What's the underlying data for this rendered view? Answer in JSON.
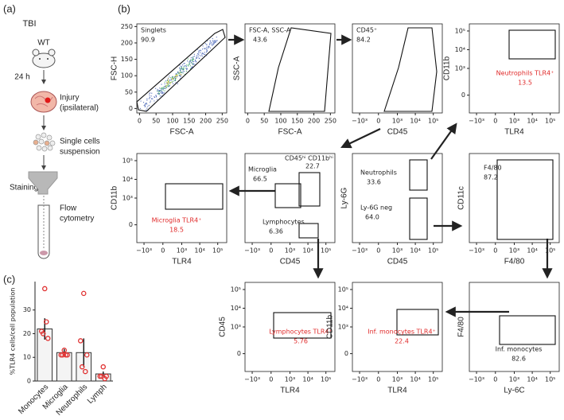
{
  "panel_a": {
    "label": "(a)",
    "title": "TBI",
    "strain": "WT",
    "time": "24 h",
    "injury": [
      "Injury",
      "(ipsilateral)"
    ],
    "cells": [
      "Single cells",
      "suspension"
    ],
    "staining": "Staining",
    "flow": [
      "Flow",
      "cytometry"
    ]
  },
  "panel_b": {
    "label": "(b)",
    "plots": [
      {
        "x_label": "FSC-A",
        "y_label": "FSC-H",
        "x_ticks": [
          0,
          50,
          100,
          150,
          200,
          250
        ],
        "y_ticks": [
          250,
          200,
          150,
          100,
          50,
          0
        ],
        "texts": [
          {
            "text": "Singlets"
          },
          {
            "text": "90.9"
          }
        ]
      },
      {
        "x_label": "FSC-A",
        "y_label": "SSC-A",
        "x_ticks": [
          0,
          50,
          100,
          150,
          200,
          250
        ],
        "y_ticks": [],
        "texts": [
          {
            "text": "FSC-A, SSC-A"
          },
          {
            "text": "43.6"
          }
        ]
      },
      {
        "x_label": "CD45",
        "y_label": "",
        "x_ticks": [
          "−10³",
          0,
          "10³",
          "10⁴",
          "10⁵"
        ],
        "y_ticks": [],
        "texts": [
          {
            "text": "CD45⁺"
          },
          {
            "text": "84.2"
          }
        ]
      },
      {
        "x_label": "TLR4",
        "y_label": "CD11b",
        "x_ticks": [
          "−10³",
          0,
          "10³",
          "10⁴",
          "10⁵"
        ],
        "y_ticks": [
          "10⁵",
          "10⁴",
          "10³",
          0
        ],
        "texts": [
          {
            "text": "Neutrophils TLR4⁺",
            "color": "#e02a2a"
          },
          {
            "text": "13.5",
            "color": "#e02a2a"
          }
        ]
      },
      {
        "x_label": "TLR4",
        "y_label": "CD11b",
        "x_ticks": [
          "−10³",
          0,
          "10³",
          "10⁴",
          "10⁵"
        ],
        "y_ticks": [
          "10⁵",
          "10⁴",
          "10³",
          0
        ],
        "texts": [
          {
            "text": "Microglia TLR4⁺",
            "color": "#e02a2a"
          },
          {
            "text": "18.5",
            "color": "#e02a2a"
          }
        ]
      },
      {
        "x_label": "CD45",
        "y_label": "",
        "x_ticks": [
          "−10³",
          0,
          "10³",
          "10⁴",
          "10⁵"
        ],
        "y_ticks": [],
        "texts": [
          {
            "text": "Microglia"
          },
          {
            "text": "66.5"
          },
          {
            "text": "CD45ʰⁱ CD11bʰⁱ"
          },
          {
            "text": "22.7"
          },
          {
            "text": "Lymphocytes"
          },
          {
            "text": "6.36"
          }
        ]
      },
      {
        "x_label": "CD45",
        "y_label": "Ly-6G",
        "x_ticks": [
          "−10³",
          0,
          "10³",
          "10⁴",
          "10⁵"
        ],
        "y_ticks": [],
        "texts": [
          {
            "text": "Neutrophils"
          },
          {
            "text": "33.6"
          },
          {
            "text": "Ly-6G neg"
          },
          {
            "text": "64.0"
          }
        ]
      },
      {
        "x_label": "F4/80",
        "y_label": "CD11c",
        "x_ticks": [
          "−10³",
          0,
          "10³",
          "10⁴",
          "10⁵"
        ],
        "y_ticks": [],
        "texts": [
          {
            "text": "F4/80"
          },
          {
            "text": "87.2"
          }
        ]
      },
      {
        "x_label": "TLR4",
        "y_label": "CD45",
        "x_ticks": [
          "−10³",
          0,
          "10³",
          "10⁴",
          "10⁵"
        ],
        "y_ticks": [
          "10⁵",
          "10⁴",
          "10³",
          0
        ],
        "texts": [
          {
            "text": "Lymphocytes TLR4⁺",
            "color": "#e02a2a"
          },
          {
            "text": "5.76",
            "color": "#e02a2a"
          }
        ]
      },
      {
        "x_label": "TLR4",
        "y_label": "CD11b",
        "x_ticks": [
          "−10³",
          0,
          "10³",
          "10⁴",
          "10⁵"
        ],
        "y_ticks": [
          "10⁵",
          "10⁴",
          "10³",
          0
        ],
        "texts": [
          {
            "text": "Inf. monocytes TLR4⁺",
            "color": "#e02a2a"
          },
          {
            "text": "22.4",
            "color": "#e02a2a"
          }
        ]
      },
      {
        "x_label": "Ly-6C",
        "y_label": "F4/80",
        "x_ticks": [
          "−10³",
          0,
          "10³",
          "10⁴",
          "10⁵"
        ],
        "y_ticks": [],
        "texts": [
          {
            "text": "Inf. monocytes"
          },
          {
            "text": "82.6"
          }
        ]
      }
    ]
  },
  "chart_data": {
    "type": "bar",
    "label": "(c)",
    "y_label": "%TLR4 cells/cell population",
    "categories": [
      "Monocytes",
      "Microglia",
      "Neutrophils",
      "Lymph"
    ],
    "values": [
      22,
      12,
      12,
      3
    ],
    "errors": [
      4.5,
      1.5,
      6,
      1
    ],
    "points": [
      [
        39,
        21,
        18,
        20,
        25
      ],
      [
        13,
        11,
        11,
        11,
        11
      ],
      [
        37,
        17,
        11,
        6,
        4
      ],
      [
        6,
        2,
        2,
        2,
        1
      ]
    ],
    "ylim": [
      0,
      42
    ],
    "yticks": [
      0,
      10,
      20,
      30
    ],
    "color": "#f4f4f4",
    "point_color": "#e03030"
  }
}
